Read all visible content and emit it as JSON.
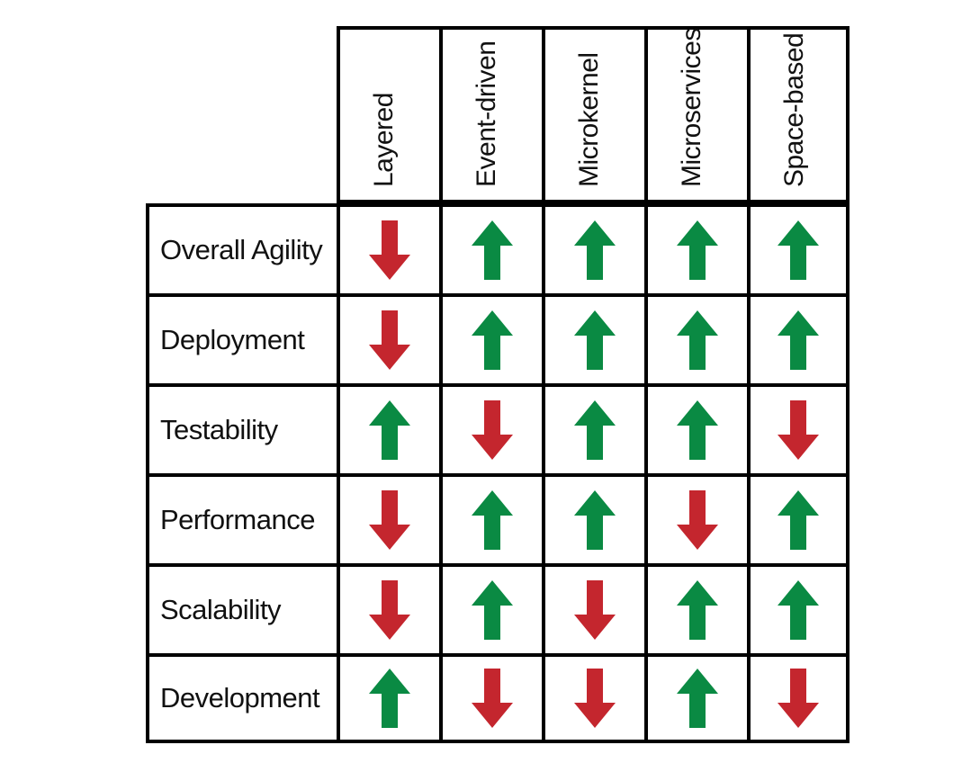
{
  "columns": [
    "Layered",
    "Event-driven",
    "Microkernel",
    "Microservices",
    "Space-based"
  ],
  "rows": [
    {
      "label": "Overall Agility",
      "ratings": [
        "down",
        "up",
        "up",
        "up",
        "up"
      ]
    },
    {
      "label": "Deployment",
      "ratings": [
        "down",
        "up",
        "up",
        "up",
        "up"
      ]
    },
    {
      "label": "Testability",
      "ratings": [
        "up",
        "down",
        "up",
        "up",
        "down"
      ]
    },
    {
      "label": "Performance",
      "ratings": [
        "down",
        "up",
        "up",
        "down",
        "up"
      ]
    },
    {
      "label": "Scalability",
      "ratings": [
        "down",
        "up",
        "down",
        "up",
        "up"
      ]
    },
    {
      "label": "Development",
      "ratings": [
        "up",
        "down",
        "down",
        "up",
        "down"
      ]
    }
  ],
  "colors": {
    "up": "#0a8a43",
    "down": "#c4262e"
  },
  "icons": {
    "up": "arrow-up-icon",
    "down": "arrow-down-icon"
  }
}
